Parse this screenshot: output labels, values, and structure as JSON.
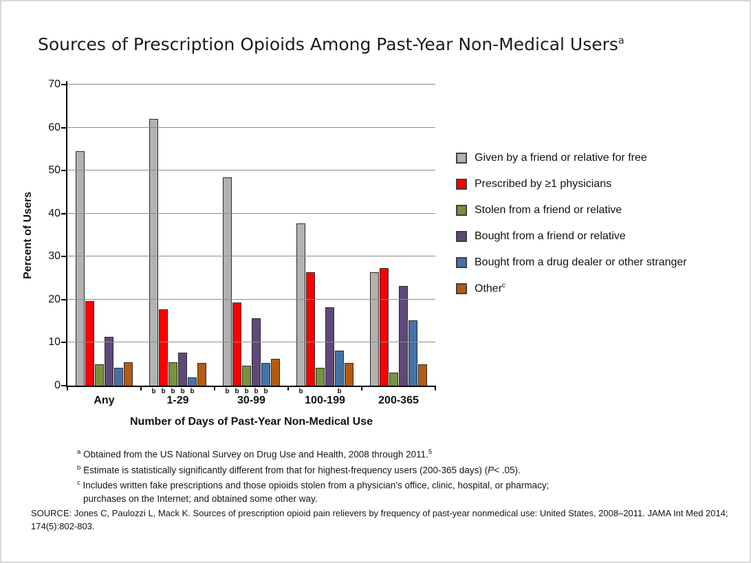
{
  "title": {
    "text": "Sources of Prescription Opioids Among Past-Year Non-Medical Users",
    "superscript": "a"
  },
  "chart_data": {
    "type": "bar",
    "title": "Sources of Prescription Opioids Among Past-Year Non-Medical Users",
    "xlabel": "Number of Days of Past-Year Non-Medical Use",
    "ylabel": "Percent of Users",
    "ylim": [
      0,
      70
    ],
    "yticks": [
      0,
      10,
      20,
      30,
      40,
      50,
      60,
      70
    ],
    "grid": true,
    "legend_position": "right",
    "categories": [
      "Any",
      "1-29",
      "30-99",
      "100-199",
      "200-365"
    ],
    "series": [
      {
        "name": "Given by a friend or relative for free",
        "color": "#b2b2b2",
        "values": [
          54.5,
          62.0,
          48.5,
          37.7,
          26.4
        ]
      },
      {
        "name": "Prescribed by ≥1 physicians",
        "color": "#fe0000",
        "values": [
          19.7,
          17.8,
          19.4,
          26.4,
          27.3
        ]
      },
      {
        "name": "Stolen from a friend or relative",
        "color": "#77933c",
        "values": [
          4.9,
          5.4,
          4.6,
          4.1,
          3.0
        ]
      },
      {
        "name": "Bought from a friend or relative",
        "color": "#5f497a",
        "values": [
          11.4,
          7.7,
          15.6,
          18.3,
          23.2
        ]
      },
      {
        "name": "Bought from a drug dealer or other stranger",
        "color": "#4472a8",
        "values": [
          4.2,
          2.0,
          5.3,
          8.2,
          15.2
        ]
      },
      {
        "name": "Other",
        "name_superscript": "c",
        "color": "#b45a12",
        "values": [
          5.5,
          5.3,
          6.3,
          5.3,
          4.9
        ]
      }
    ],
    "significance_markers": {
      "symbol": "b",
      "by_category": {
        "1-29": [
          0,
          1,
          2,
          3,
          4
        ],
        "30-99": [
          0,
          1,
          2,
          3,
          4
        ],
        "100-199": [
          0,
          4
        ]
      }
    }
  },
  "footnotes": [
    {
      "marker": "a",
      "parts": [
        [
          "text",
          "Obtained from the US National Survey on Drug Use and Health, 2008 through 2011."
        ],
        [
          "sup",
          "5"
        ]
      ]
    },
    {
      "marker": "b",
      "parts": [
        [
          "text",
          "Estimate is statistically significantly different from that for highest-frequency users (200-365 days) ("
        ],
        [
          "i",
          "P"
        ],
        [
          "text",
          "< .05)."
        ]
      ]
    },
    {
      "marker": "c",
      "parts": [
        [
          "text",
          "Includes written fake prescriptions and those opioids stolen from a physician’s office, clinic, hospital, or pharmacy; purchases on the Internet; and obtained some other way."
        ]
      ]
    }
  ],
  "source": "SOURCE: Jones C, Paulozzi L, Mack K. Sources of prescription opioid pain relievers by frequency of past-year nonmedical use: United States, 2008–2011. JAMA Int Med 2014; 174(5):802-803."
}
